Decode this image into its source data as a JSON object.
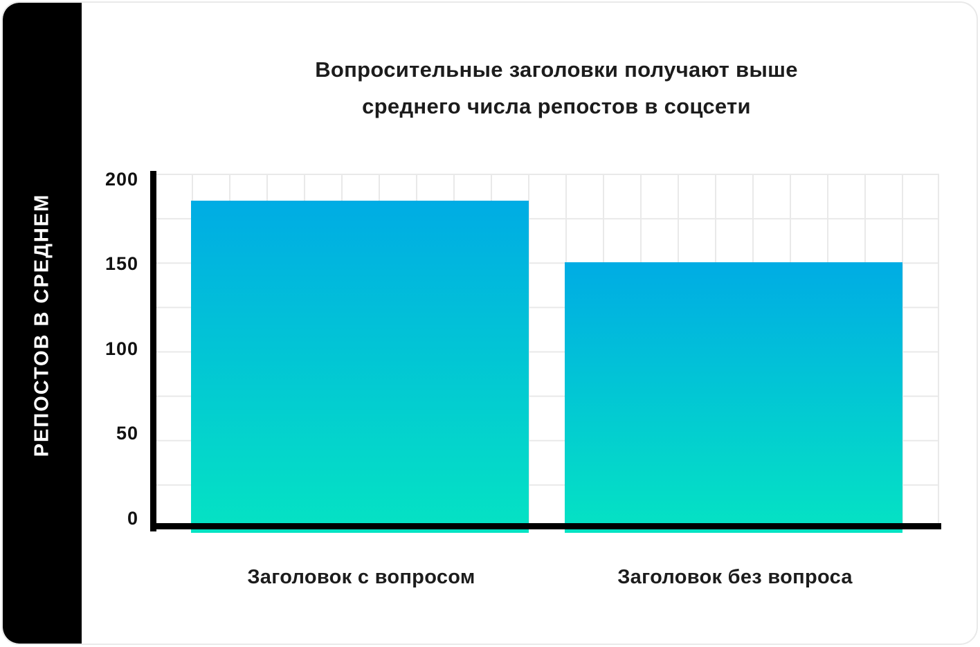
{
  "chart_data": {
    "type": "bar",
    "title": "Вопросительные заголовки получают выше среднего числа репостов в соцсети",
    "title_lines": [
      "Вопросительные заголовки получают выше",
      "среднего числа репостов в соцсети"
    ],
    "categories": [
      "Заголовок с вопросом",
      "Заголовок без вопроса"
    ],
    "values": [
      185,
      150
    ],
    "xlabel": "",
    "ylabel": "РЕПОСТОВ В СРЕДНЕМ",
    "yticks": [
      "200",
      "150",
      "100",
      "50",
      "0"
    ],
    "ylim": [
      0,
      200
    ],
    "grid": true,
    "legend_position": "none",
    "colors": {
      "bar_gradient_top": "#00ACE4",
      "bar_gradient_bottom": "#05E3C3",
      "axis": "#000000",
      "gridline": "#e9e9e9",
      "sidebar_background": "#000000",
      "sidebar_text": "#ffffff",
      "title_text": "#1c1c1c",
      "card_background": "#ffffff",
      "card_border": "#e9e9e9"
    }
  }
}
